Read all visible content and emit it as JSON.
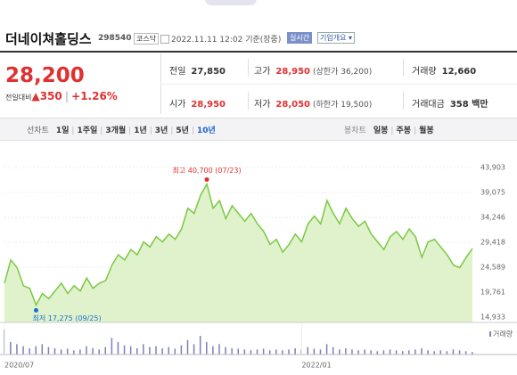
{
  "stock": {
    "name": "더네이쳐홀딩스",
    "code": "298540",
    "market": "코스닥",
    "timestamp": "2022.11.11 12:02 기준(장중)",
    "realtime": "실시간",
    "company_info": "기업개요"
  },
  "price": {
    "current": "28,200",
    "change_label": "전일대비",
    "arrow": "▲",
    "change": "350",
    "rate": "+1.26%"
  },
  "quotes": [
    {
      "label": "전일",
      "value": "27,850"
    },
    {
      "label": "고가",
      "value": "28,950",
      "note": "(상한가 36,200)"
    },
    {
      "label": "거래량",
      "value": "12,660"
    },
    {
      "label": "시가",
      "value": "28,950"
    },
    {
      "label": "저가",
      "value": "28,050",
      "note": "(하한가 19,500)"
    },
    {
      "label": "거래대금",
      "value": "358 백만"
    }
  ],
  "tabs": {
    "line_chart": "선차트",
    "periods": [
      "1일",
      "1주일",
      "3개월",
      "1년",
      "3년",
      "5년",
      "10년"
    ],
    "selected_period": 6,
    "candle_chart": "봉차트",
    "candle_periods": [
      "일봉",
      "주봉",
      "월봉"
    ]
  },
  "chart_data": {
    "type": "area",
    "color": "#7cc843",
    "fill": "#dff2cc",
    "categories": [
      "2020/07",
      null,
      null,
      null,
      null,
      null,
      null,
      null,
      null,
      null,
      null,
      null,
      null,
      null,
      null,
      null,
      null,
      null,
      null,
      null,
      null,
      null,
      null,
      null,
      null,
      null,
      null,
      null,
      null,
      null,
      null,
      null,
      null,
      null,
      null,
      null,
      null,
      null,
      null,
      null,
      null,
      null,
      null,
      null,
      null,
      null,
      null,
      "2022/01",
      null,
      null,
      null,
      null,
      null,
      null,
      null,
      null,
      null,
      null,
      null,
      null,
      null,
      null,
      null,
      null,
      null,
      null,
      null,
      null,
      null,
      null,
      null,
      null,
      null,
      null,
      null
    ],
    "values": [
      21500,
      26000,
      24500,
      21000,
      20500,
      17275,
      19500,
      18500,
      20000,
      21500,
      19500,
      21000,
      20000,
      22500,
      20500,
      21500,
      22000,
      25000,
      27000,
      26000,
      28000,
      27000,
      29500,
      28500,
      30500,
      29500,
      31000,
      30000,
      32000,
      36000,
      35000,
      38500,
      40700,
      36000,
      37500,
      34000,
      36500,
      35000,
      33500,
      35000,
      33000,
      31500,
      29000,
      30000,
      27500,
      29000,
      31000,
      29500,
      33000,
      34500,
      33000,
      37500,
      35000,
      33000,
      36000,
      34000,
      32500,
      33500,
      31000,
      29500,
      28000,
      30500,
      31500,
      30000,
      32000,
      30500,
      26500,
      29500,
      30000,
      28500,
      27000,
      25000,
      24500,
      26500,
      28200
    ],
    "volume": [
      60,
      30,
      25,
      20,
      15,
      20,
      25,
      18,
      15,
      12,
      14,
      10,
      12,
      20,
      15,
      12,
      18,
      40,
      30,
      22,
      20,
      15,
      25,
      18,
      20,
      15,
      18,
      14,
      22,
      35,
      25,
      45,
      30,
      20,
      25,
      18,
      15,
      14,
      12,
      10,
      12,
      14,
      10,
      12,
      10,
      12,
      15,
      12,
      18,
      14,
      12,
      25,
      18,
      12,
      15,
      12,
      10,
      12,
      10,
      8,
      10,
      12,
      10,
      8,
      10,
      12,
      15,
      10,
      8,
      10,
      8,
      12,
      10,
      8,
      6
    ],
    "volume_label": "거래량",
    "ylim": [
      14933,
      43903
    ],
    "yticks": [
      {
        "value": 14933,
        "label": "14,933"
      },
      {
        "value": 19761,
        "label": "19,761"
      },
      {
        "value": 24589,
        "label": "24,589"
      },
      {
        "value": 29418,
        "label": "29,418"
      },
      {
        "value": 34246,
        "label": "34,246"
      },
      {
        "value": 39075,
        "label": "39,075"
      },
      {
        "value": 43903,
        "label": "43,903"
      }
    ],
    "grid": true,
    "annotations": [
      {
        "text": "최고 40,700 (07/23)",
        "index": 32,
        "color": "#e03131"
      },
      {
        "text": "최저 17,275 (09/25)",
        "index": 5,
        "color": "#1c6fd1"
      }
    ]
  }
}
